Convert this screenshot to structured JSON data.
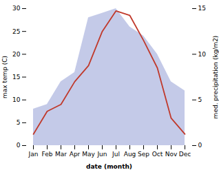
{
  "chart_data": {
    "type": "line",
    "xlabel": "date (month)",
    "ylabel": "max temp (C)",
    "y2label": "med. precipitation (kg/m2)",
    "categories": [
      "Jan",
      "Feb",
      "Mar",
      "Apr",
      "May",
      "Jun",
      "Jul",
      "Aug",
      "Sep",
      "Oct",
      "Nov",
      "Dec"
    ],
    "series": [
      {
        "type": "area",
        "axis": "y2",
        "color": "#b0b8e0",
        "values": [
          4.0,
          4.5,
          7.0,
          8.0,
          14.0,
          14.5,
          15.0,
          13.0,
          12.0,
          10.0,
          7.0,
          6.0
        ]
      },
      {
        "type": "line",
        "color": "#c0392b",
        "values": [
          2.5,
          7.5,
          9.0,
          14.0,
          17.5,
          25.0,
          29.5,
          28.5,
          23.0,
          17.0,
          6.0,
          2.5
        ]
      }
    ],
    "ylim": [
      0,
      30
    ],
    "yticks": [
      0,
      5,
      10,
      15,
      20,
      25,
      30
    ],
    "y2lim": [
      0,
      15
    ],
    "y2ticks": [
      0,
      5,
      10,
      15
    ],
    "grid": false
  }
}
